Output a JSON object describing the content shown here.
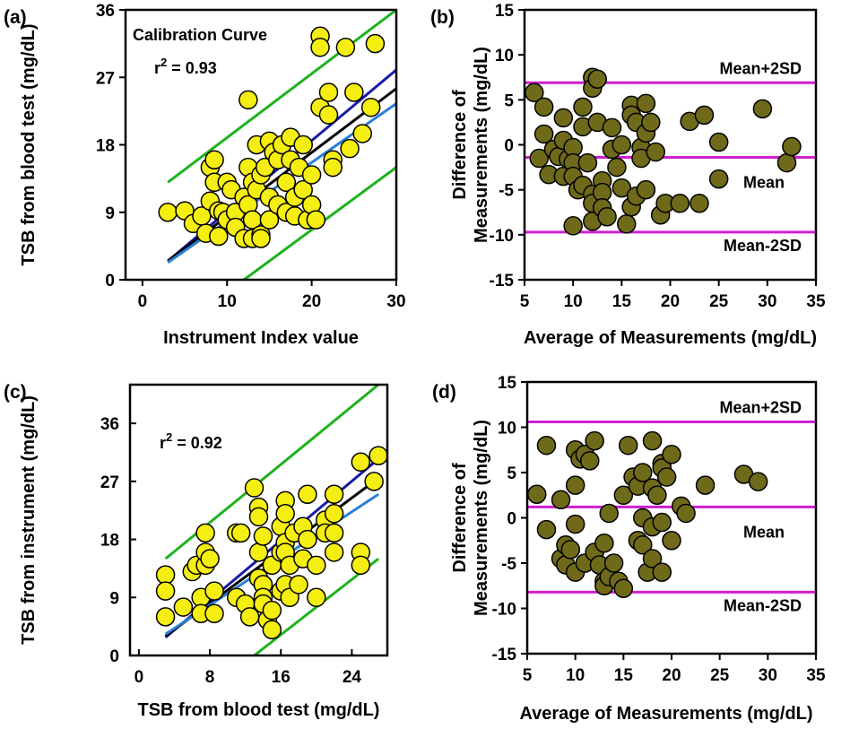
{
  "colors": {
    "yellow_marker": "#f5ee12",
    "olive_marker": "#6e6a1a",
    "green_line": "#1db21d",
    "navy_line": "#1a1aa6",
    "black_line": "#000000",
    "blue_line": "#2a7fd4",
    "magenta_line": "#d01fd0"
  },
  "chart_data": [
    {
      "panel": "(a)",
      "type": "scatter",
      "title": "Calibration Curve",
      "annotation": {
        "prefix": "r",
        "sup": "2",
        "suffix": " = 0.93"
      },
      "xlabel": "Instrument Index value",
      "ylabel": "TSB from blood test (mg/dL)",
      "xlim": [
        -2,
        30
      ],
      "ylim": [
        0,
        36
      ],
      "xticks": [
        0,
        10,
        20,
        30
      ],
      "yticks": [
        0,
        9,
        18,
        27,
        36
      ],
      "marker": "yellow",
      "points": [
        [
          3,
          9
        ],
        [
          5,
          9.2
        ],
        [
          6,
          7.5
        ],
        [
          7,
          8.5
        ],
        [
          7.5,
          6.2
        ],
        [
          8,
          10.5
        ],
        [
          8,
          15
        ],
        [
          8.5,
          13
        ],
        [
          8.5,
          16
        ],
        [
          9,
          5.8
        ],
        [
          9,
          9.2
        ],
        [
          9.5,
          9
        ],
        [
          10,
          13
        ],
        [
          10,
          8
        ],
        [
          10.5,
          12
        ],
        [
          11,
          9
        ],
        [
          11,
          7
        ],
        [
          12,
          11
        ],
        [
          12,
          5.5
        ],
        [
          12.5,
          24
        ],
        [
          12.5,
          15
        ],
        [
          12.5,
          10
        ],
        [
          13,
          8
        ],
        [
          13,
          5.5
        ],
        [
          13,
          13
        ],
        [
          13.5,
          18
        ],
        [
          13.5,
          12
        ],
        [
          14,
          14
        ],
        [
          14,
          6
        ],
        [
          14,
          5.5
        ],
        [
          14.5,
          15
        ],
        [
          15,
          18.5
        ],
        [
          15,
          11
        ],
        [
          15,
          8
        ],
        [
          15.5,
          17
        ],
        [
          16,
          10
        ],
        [
          16,
          16
        ],
        [
          16.5,
          18
        ],
        [
          17,
          9
        ],
        [
          17,
          13
        ],
        [
          17.5,
          19
        ],
        [
          17.5,
          16
        ],
        [
          18,
          11
        ],
        [
          18,
          8.5
        ],
        [
          18.5,
          15
        ],
        [
          19,
          18
        ],
        [
          19,
          12
        ],
        [
          19.5,
          8
        ],
        [
          20,
          10
        ],
        [
          20,
          14
        ],
        [
          20.5,
          8
        ],
        [
          21,
          32.5
        ],
        [
          21,
          31
        ],
        [
          21,
          23
        ],
        [
          22,
          25
        ],
        [
          22,
          22
        ],
        [
          22.5,
          16
        ],
        [
          22.5,
          15
        ],
        [
          24,
          31
        ],
        [
          24.5,
          17.5
        ],
        [
          25,
          25
        ],
        [
          26,
          19.5
        ],
        [
          27,
          23
        ],
        [
          27.5,
          31.5
        ]
      ],
      "lines": [
        {
          "name": "upper bound",
          "color": "green",
          "p1": [
            3,
            13
          ],
          "p2": [
            30,
            36
          ]
        },
        {
          "name": "lower bound",
          "color": "green",
          "p1": [
            12,
            0
          ],
          "p2": [
            30,
            15
          ]
        },
        {
          "name": "fit high",
          "color": "navy",
          "p1": [
            3,
            2.5
          ],
          "p2": [
            30,
            28
          ]
        },
        {
          "name": "fit",
          "color": "black",
          "p1": [
            3,
            2.5
          ],
          "p2": [
            30,
            25.5
          ]
        },
        {
          "name": "fit low",
          "color": "blue",
          "p1": [
            3,
            2.3
          ],
          "p2": [
            30,
            23.5
          ]
        }
      ]
    },
    {
      "panel": "(b)",
      "type": "scatter",
      "xlabel": "Average of Measurements (mg/dL)",
      "ylabel": "Difference of Measurements (mg/dL)",
      "ylabel_lines": [
        "Difference of",
        "Measurements (mg/dL)"
      ],
      "xlim": [
        5,
        35
      ],
      "ylim": [
        -15,
        15
      ],
      "xticks": [
        5,
        10,
        15,
        20,
        25,
        30,
        35
      ],
      "yticks": [
        -15,
        -10,
        -5,
        0,
        5,
        10,
        15
      ],
      "marker": "olive",
      "hlines": [
        {
          "label": "Mean+2SD",
          "y": 6.9
        },
        {
          "label": "Mean",
          "y": -1.4
        },
        {
          "label": "Mean-2SD",
          "y": -9.7
        }
      ],
      "points": [
        [
          6,
          5.8
        ],
        [
          6.5,
          -1.5
        ],
        [
          7,
          1.2
        ],
        [
          7,
          4.2
        ],
        [
          7.5,
          -3.3
        ],
        [
          8,
          -0.5
        ],
        [
          8.5,
          -1.3
        ],
        [
          9,
          3
        ],
        [
          9,
          0.5
        ],
        [
          9,
          -3.5
        ],
        [
          9.5,
          -1.6
        ],
        [
          10,
          -0.3
        ],
        [
          10,
          -2
        ],
        [
          10,
          -3.5
        ],
        [
          10,
          -9
        ],
        [
          10.5,
          -5
        ],
        [
          11,
          4.2
        ],
        [
          11,
          2
        ],
        [
          11,
          -4.5
        ],
        [
          11.5,
          -2
        ],
        [
          12,
          7.5
        ],
        [
          12,
          6.3
        ],
        [
          12,
          -5.5
        ],
        [
          12,
          -6.5
        ],
        [
          12,
          -8.5
        ],
        [
          12.5,
          7.3
        ],
        [
          12.5,
          2.5
        ],
        [
          13,
          -4
        ],
        [
          13,
          -5.3
        ],
        [
          13,
          -7
        ],
        [
          13.5,
          -8
        ],
        [
          14,
          1.9
        ],
        [
          14,
          -0.5
        ],
        [
          14.5,
          -2.5
        ],
        [
          15,
          0
        ],
        [
          15,
          -4.8
        ],
        [
          15.5,
          -8.8
        ],
        [
          16,
          4.4
        ],
        [
          16,
          3.3
        ],
        [
          16,
          -6.9
        ],
        [
          16.5,
          2.5
        ],
        [
          16.5,
          -5.7
        ],
        [
          17,
          -0.3
        ],
        [
          17,
          -1.5
        ],
        [
          17.5,
          4.6
        ],
        [
          17.5,
          1.3
        ],
        [
          17.5,
          -5
        ],
        [
          18,
          2.5
        ],
        [
          18.5,
          -0.8
        ],
        [
          19,
          -7.8
        ],
        [
          19.5,
          -6.5
        ],
        [
          21,
          -6.5
        ],
        [
          22,
          2.6
        ],
        [
          23,
          -6.5
        ],
        [
          23.5,
          3.3
        ],
        [
          25,
          0.3
        ],
        [
          25,
          -3.8
        ],
        [
          29.5,
          4
        ],
        [
          32,
          -2
        ],
        [
          32.5,
          -0.2
        ]
      ]
    },
    {
      "panel": "(c)",
      "type": "scatter",
      "annotation": {
        "prefix": "r",
        "sup": "2",
        "suffix": " = 0.92"
      },
      "xlabel": "TSB from blood test (mg/dL)",
      "ylabel": "TSB from instrument (mg/dL)",
      "xlim": [
        -1,
        28
      ],
      "ylim": [
        0,
        42
      ],
      "xticks": [
        0,
        8,
        16,
        24
      ],
      "yticks": [
        0,
        9,
        18,
        27,
        36
      ],
      "marker": "yellow",
      "points": [
        [
          3,
          12.5
        ],
        [
          3,
          10
        ],
        [
          3,
          6
        ],
        [
          5,
          7.5
        ],
        [
          6,
          13
        ],
        [
          6.5,
          14
        ],
        [
          7,
          9
        ],
        [
          7,
          6.5
        ],
        [
          7.5,
          14
        ],
        [
          7.5,
          16
        ],
        [
          7.5,
          19
        ],
        [
          8,
          15
        ],
        [
          8.5,
          10
        ],
        [
          8.5,
          6.5
        ],
        [
          11,
          19
        ],
        [
          11,
          9
        ],
        [
          11.5,
          19
        ],
        [
          12,
          8
        ],
        [
          12.5,
          6
        ],
        [
          13,
          26
        ],
        [
          13.5,
          23
        ],
        [
          13.5,
          21.5
        ],
        [
          13.5,
          16
        ],
        [
          13.5,
          12
        ],
        [
          14,
          18.5
        ],
        [
          14,
          11
        ],
        [
          14,
          9
        ],
        [
          14,
          8
        ],
        [
          14.5,
          5.5
        ],
        [
          15,
          14
        ],
        [
          15,
          4
        ],
        [
          15,
          7
        ],
        [
          16,
          20
        ],
        [
          16,
          16
        ],
        [
          16,
          10
        ],
        [
          16.5,
          24
        ],
        [
          16.5,
          22
        ],
        [
          16.5,
          17.5
        ],
        [
          16.5,
          16
        ],
        [
          16.5,
          11
        ],
        [
          17,
          14
        ],
        [
          17,
          9
        ],
        [
          17.5,
          19
        ],
        [
          18,
          11
        ],
        [
          18.5,
          20
        ],
        [
          18.5,
          15
        ],
        [
          19,
          25
        ],
        [
          19,
          18
        ],
        [
          20,
          14
        ],
        [
          20,
          9
        ],
        [
          21,
          21
        ],
        [
          21,
          19
        ],
        [
          22,
          25
        ],
        [
          22,
          22
        ],
        [
          22,
          19
        ],
        [
          22,
          16
        ],
        [
          25,
          30
        ],
        [
          25,
          16
        ],
        [
          25,
          14
        ],
        [
          26.5,
          27
        ],
        [
          27,
          31
        ]
      ],
      "lines": [
        {
          "name": "upper bound",
          "color": "green",
          "p1": [
            3,
            15
          ],
          "p2": [
            27,
            42
          ]
        },
        {
          "name": "lower bound",
          "color": "green",
          "p1": [
            13,
            0
          ],
          "p2": [
            27,
            15
          ]
        },
        {
          "name": "fit high",
          "color": "navy",
          "p1": [
            3,
            2.8
          ],
          "p2": [
            27,
            30.5
          ]
        },
        {
          "name": "fit",
          "color": "black",
          "p1": [
            3,
            3
          ],
          "p2": [
            27,
            27.5
          ]
        },
        {
          "name": "fit low",
          "color": "blue",
          "p1": [
            3,
            3.3
          ],
          "p2": [
            27,
            25
          ]
        }
      ]
    },
    {
      "panel": "(d)",
      "type": "scatter",
      "xlabel": "Average of Measurements (mg/dL)",
      "ylabel": "Difference of Measurements (mg/dL)",
      "ylabel_lines": [
        "Difference of",
        "Measurements (mg/dL)"
      ],
      "xlim": [
        5,
        35
      ],
      "ylim": [
        -15,
        15
      ],
      "xticks": [
        5,
        10,
        15,
        20,
        25,
        30,
        35
      ],
      "yticks": [
        -15,
        -10,
        -5,
        0,
        5,
        10,
        15
      ],
      "marker": "olive",
      "hlines": [
        {
          "label": "Mean+2SD",
          "y": 10.6
        },
        {
          "label": "Mean",
          "y": 1.2
        },
        {
          "label": "Mean-2SD",
          "y": -8.2
        }
      ],
      "points": [
        [
          6,
          2.6
        ],
        [
          7,
          8
        ],
        [
          7,
          -1.3
        ],
        [
          8.5,
          2
        ],
        [
          8.5,
          -4.5
        ],
        [
          9,
          -3
        ],
        [
          9,
          -5.2
        ],
        [
          9.5,
          -3.5
        ],
        [
          10,
          7.5
        ],
        [
          10,
          3.6
        ],
        [
          10,
          -0.7
        ],
        [
          10,
          -6
        ],
        [
          10.5,
          6.5
        ],
        [
          11,
          7
        ],
        [
          11,
          -5
        ],
        [
          11.5,
          6.3
        ],
        [
          12,
          8.5
        ],
        [
          12,
          -3.8
        ],
        [
          12.5,
          -5.2
        ],
        [
          13,
          -7
        ],
        [
          13,
          -2.8
        ],
        [
          13,
          -7.5
        ],
        [
          13.5,
          0.5
        ],
        [
          13.5,
          -6.5
        ],
        [
          14,
          -5
        ],
        [
          14.5,
          -7
        ],
        [
          15,
          2.5
        ],
        [
          15,
          -7.8
        ],
        [
          15.5,
          8
        ],
        [
          16,
          4.5
        ],
        [
          16.5,
          3.5
        ],
        [
          16.5,
          -2.5
        ],
        [
          17,
          5
        ],
        [
          17,
          0
        ],
        [
          17,
          -3
        ],
        [
          17.5,
          -6
        ],
        [
          18,
          8.5
        ],
        [
          18,
          3.3
        ],
        [
          18,
          -1
        ],
        [
          18,
          -4.5
        ],
        [
          18.5,
          2.5
        ],
        [
          19,
          6
        ],
        [
          19,
          5.5
        ],
        [
          19,
          -0.5
        ],
        [
          19,
          -6
        ],
        [
          19.5,
          4.5
        ],
        [
          20,
          7
        ],
        [
          20,
          -2.5
        ],
        [
          21,
          1.3
        ],
        [
          21.5,
          0.5
        ],
        [
          23.5,
          3.6
        ],
        [
          27.5,
          4.8
        ],
        [
          29,
          4
        ]
      ]
    }
  ]
}
